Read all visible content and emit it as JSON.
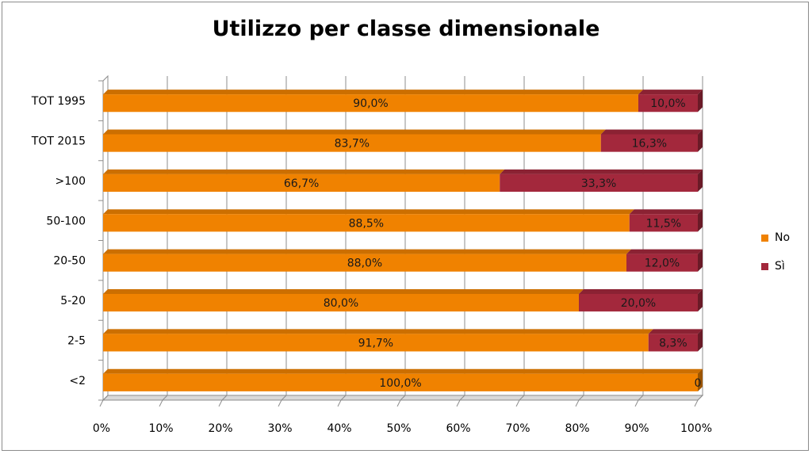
{
  "chart_data": {
    "type": "bar",
    "orientation": "horizontal",
    "stacked": true,
    "title": "Utilizzo per classe dimensionale",
    "categories": [
      "TOT 1995",
      "TOT 2015",
      ">100",
      "50-100",
      "20-50",
      "5-20",
      "2-5",
      "<2"
    ],
    "series": [
      {
        "name": "No",
        "color": "#f08200",
        "values": [
          90.0,
          83.7,
          66.7,
          88.5,
          88.0,
          80.0,
          91.7,
          100.0
        ],
        "labels": [
          "90,0%",
          "83,7%",
          "66,7%",
          "88,5%",
          "88,0%",
          "80,0%",
          "91,7%",
          "100,0%"
        ]
      },
      {
        "name": "Sì",
        "color": "#a3283c",
        "values": [
          10.0,
          16.3,
          33.3,
          11.5,
          12.0,
          20.0,
          8.3,
          0
        ],
        "labels": [
          "10,0%",
          "16,3%",
          "33,3%",
          "11,5%",
          "12,0%",
          "20,0%",
          "8,3%",
          "0"
        ]
      }
    ],
    "xlim": [
      0,
      100
    ],
    "x_ticks": [
      "0%",
      "10%",
      "20%",
      "30%",
      "40%",
      "50%",
      "60%",
      "70%",
      "80%",
      "90%",
      "100%"
    ],
    "grid": true,
    "legend_position": "right"
  }
}
